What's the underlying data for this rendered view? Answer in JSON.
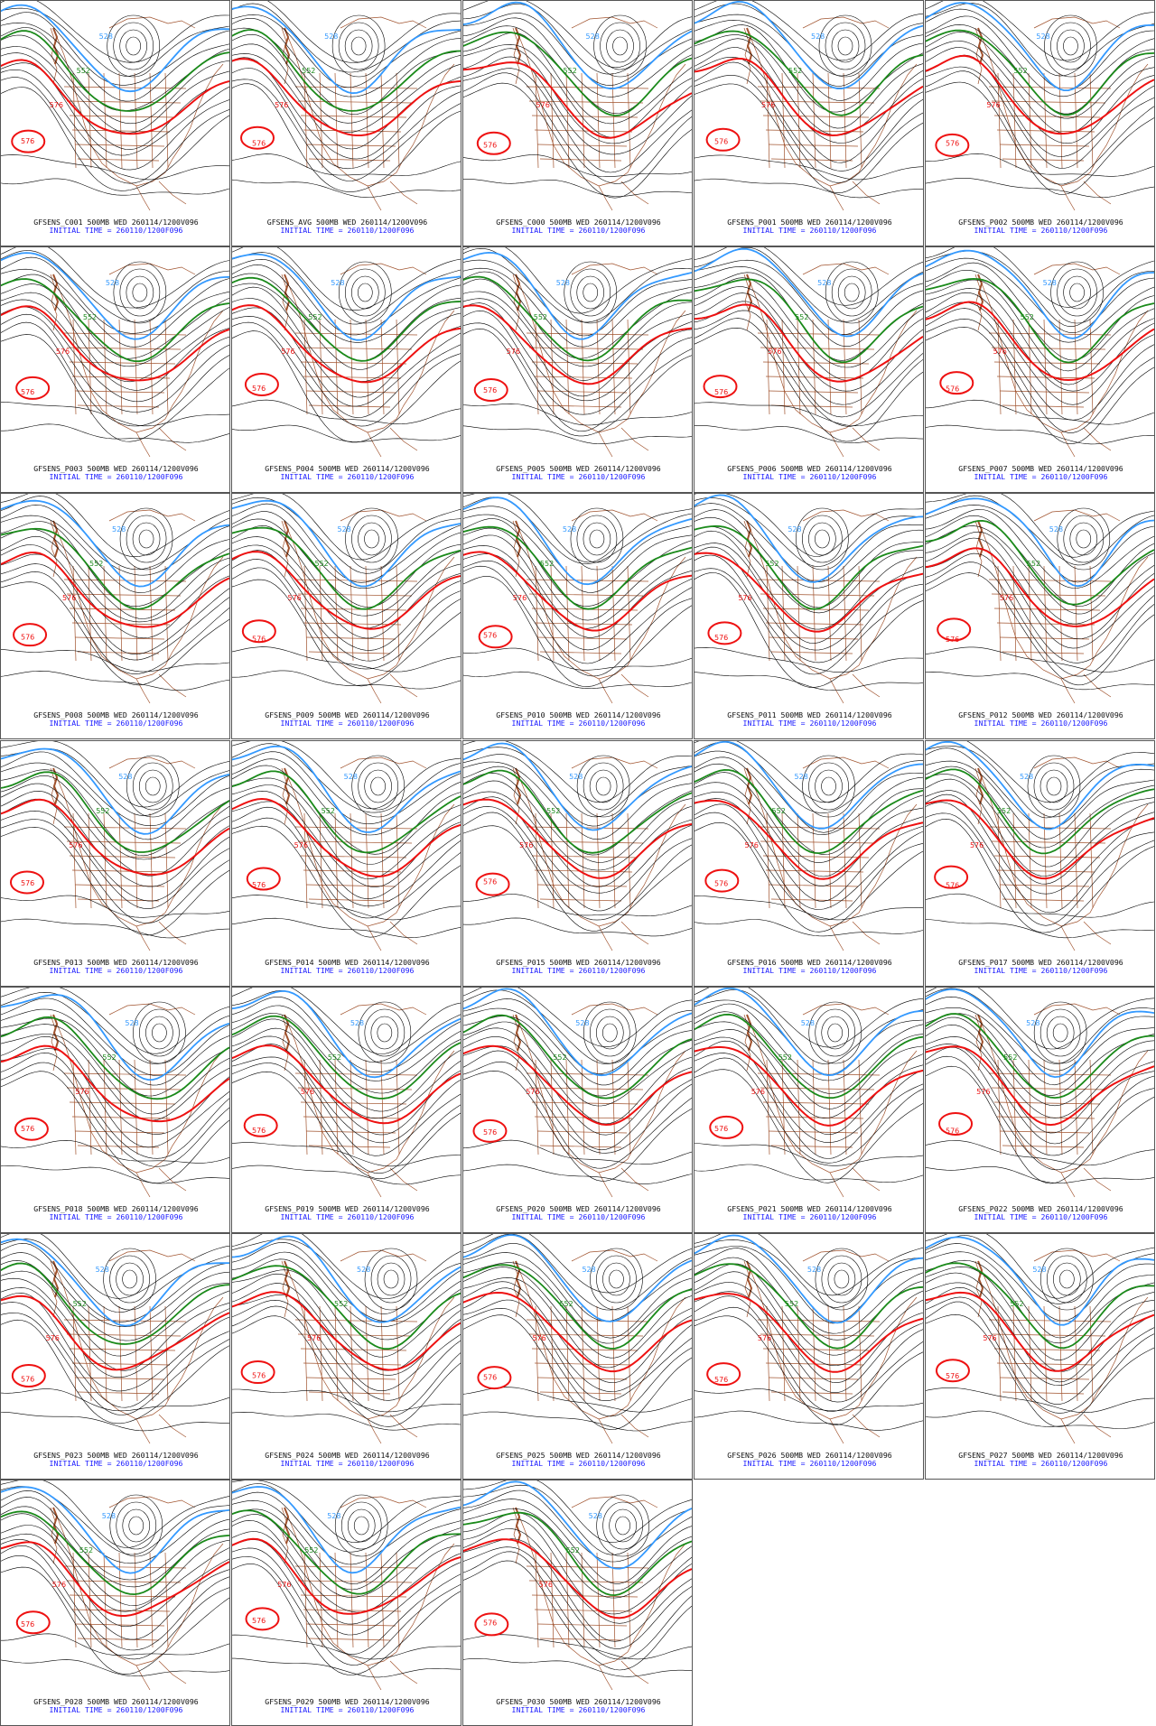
{
  "initial_time_text": "INITIAL TIME = 260110/1200F096",
  "contour_labels": {
    "blue": "528",
    "green": "552",
    "red": "576"
  },
  "colors": {
    "blue_contour": "#3399ff",
    "green_contour": "#1a8a1a",
    "red_contour": "#ee1111",
    "black_contour": "#000000",
    "geography": "#a0522d",
    "caption_blue": "#1a1aff"
  },
  "panels": [
    {
      "title": "GFSENS_C001 500MB WED 260114/1200V096"
    },
    {
      "title": "GFSENS_AVG 500MB WED 260114/1200V096"
    },
    {
      "title": "GFSENS_C000 500MB WED 260114/1200V096"
    },
    {
      "title": "GFSENS_P001 500MB WED 260114/1200V096"
    },
    {
      "title": "GFSENS_P002 500MB WED 260114/1200V096"
    },
    {
      "title": "GFSENS_P003 500MB WED 260114/1200V096"
    },
    {
      "title": "GFSENS_P004 500MB WED 260114/1200V096"
    },
    {
      "title": "GFSENS_P005 500MB WED 260114/1200V096"
    },
    {
      "title": "GFSENS_P006 500MB WED 260114/1200V096"
    },
    {
      "title": "GFSENS_P007 500MB WED 260114/1200V096"
    },
    {
      "title": "GFSENS_P008 500MB WED 260114/1200V096"
    },
    {
      "title": "GFSENS_P009 500MB WED 260114/1200V096"
    },
    {
      "title": "GFSENS_P010 500MB WED 260114/1200V096"
    },
    {
      "title": "GFSENS_P011 500MB WED 260114/1200V096"
    },
    {
      "title": "GFSENS_P012 500MB WED 260114/1200V096"
    },
    {
      "title": "GFSENS_P013 500MB WED 260114/1200V096"
    },
    {
      "title": "GFSENS_P014 500MB WED 260114/1200V096"
    },
    {
      "title": "GFSENS_P015 500MB WED 260114/1200V096"
    },
    {
      "title": "GFSENS_P016 500MB WED 260114/1200V096"
    },
    {
      "title": "GFSENS_P017 500MB WED 260114/1200V096"
    },
    {
      "title": "GFSENS_P018 500MB WED 260114/1200V096"
    },
    {
      "title": "GFSENS_P019 500MB WED 260114/1200V096"
    },
    {
      "title": "GFSENS_P020 500MB WED 260114/1200V096"
    },
    {
      "title": "GFSENS_P021 500MB WED 260114/1200V096"
    },
    {
      "title": "GFSENS_P022 500MB WED 260114/1200V096"
    },
    {
      "title": "GFSENS_P023 500MB WED 260114/1200V096"
    },
    {
      "title": "GFSENS_P024 500MB WED 260114/1200V096"
    },
    {
      "title": "GFSENS_P025 500MB WED 260114/1200V096"
    },
    {
      "title": "GFSENS_P026 500MB WED 260114/1200V096"
    },
    {
      "title": "GFSENS_P027 500MB WED 260114/1200V096"
    },
    {
      "title": "GFSENS_P028 500MB WED 260114/1200V096"
    },
    {
      "title": "GFSENS_P029 500MB WED 260114/1200V096"
    },
    {
      "title": "GFSENS_P030 500MB WED 260114/1200V096"
    }
  ]
}
